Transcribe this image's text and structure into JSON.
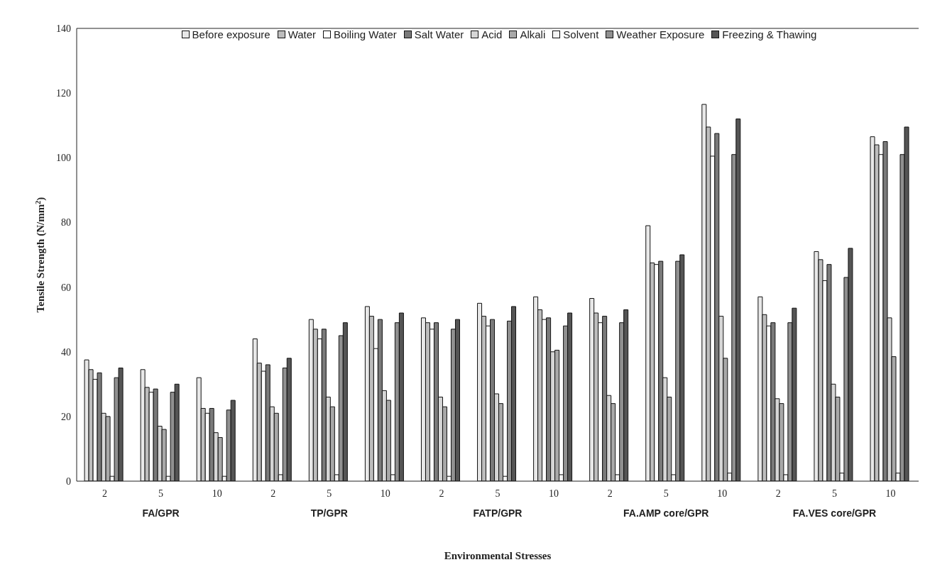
{
  "chart_data": {
    "type": "bar",
    "xlabel": "Environmental Stresses",
    "ylabel": "Tensile Strength (N/mm$^{2}$)",
    "categories": [
      "2",
      "5",
      "10",
      "2",
      "5",
      "10",
      "2",
      "5",
      "10",
      "2",
      "5",
      "10",
      "2",
      "5",
      "10"
    ],
    "annotations": [
      "FA/GPR",
      "TP/GPR",
      "FATP/GPR",
      "FA.AMP core/GPR",
      "FA.VES core/GPR"
    ],
    "ylim": [
      0,
      140
    ],
    "yticks": [
      0,
      20,
      40,
      60,
      80,
      100,
      120,
      140
    ],
    "grid": false,
    "legend": "top",
    "series": [
      {
        "name": "Before exposure",
        "color": "#e8e8e8",
        "values": [
          37.5,
          34.5,
          32,
          44,
          50,
          54,
          50.5,
          55,
          57,
          56.5,
          79,
          116.5,
          57,
          71,
          106.5
        ]
      },
      {
        "name": "Water",
        "color": "#bdbdbd",
        "values": [
          34.5,
          29,
          22.5,
          36.5,
          47,
          51,
          49,
          51,
          53,
          52,
          67.5,
          109.5,
          51.5,
          68.5,
          104
        ]
      },
      {
        "name": "Boiling Water",
        "color": "#ffffff",
        "values": [
          31.5,
          27.5,
          21,
          34,
          44,
          41,
          47,
          48,
          50,
          49,
          67,
          100.5,
          48,
          62,
          101
        ]
      },
      {
        "name": "Salt Water",
        "color": "#7a7a7a",
        "values": [
          33.5,
          28.5,
          22.5,
          36,
          47,
          50,
          49,
          50,
          50.5,
          51,
          68,
          107.5,
          49,
          67,
          105
        ]
      },
      {
        "name": "Acid",
        "color": "#d6d6d6",
        "values": [
          21,
          17,
          15,
          23,
          26,
          28,
          26,
          27,
          40,
          26.5,
          32,
          51,
          25.5,
          30,
          50.5
        ]
      },
      {
        "name": "Alkali",
        "color": "#a8a8a8",
        "values": [
          20,
          16,
          13.5,
          21,
          23,
          25,
          23,
          24,
          40.5,
          24,
          26,
          38,
          24,
          26,
          38.5
        ]
      },
      {
        "name": "Solvent",
        "color": "#f4f4f4",
        "values": [
          1.5,
          1.5,
          1.5,
          2,
          2,
          2,
          1.5,
          1.5,
          2,
          2,
          2,
          2.5,
          2,
          2.5,
          2.5
        ]
      },
      {
        "name": "Weather Exposure",
        "color": "#909090",
        "values": [
          32,
          27.5,
          22,
          35,
          45,
          49,
          47,
          49.5,
          48,
          49,
          68,
          101,
          49,
          63,
          101
        ]
      },
      {
        "name": "Freezing & Thawing",
        "color": "#555555",
        "values": [
          35,
          30,
          25,
          38,
          49,
          52,
          50,
          54,
          52,
          53,
          70,
          112,
          53.5,
          72,
          109.5
        ]
      }
    ]
  }
}
